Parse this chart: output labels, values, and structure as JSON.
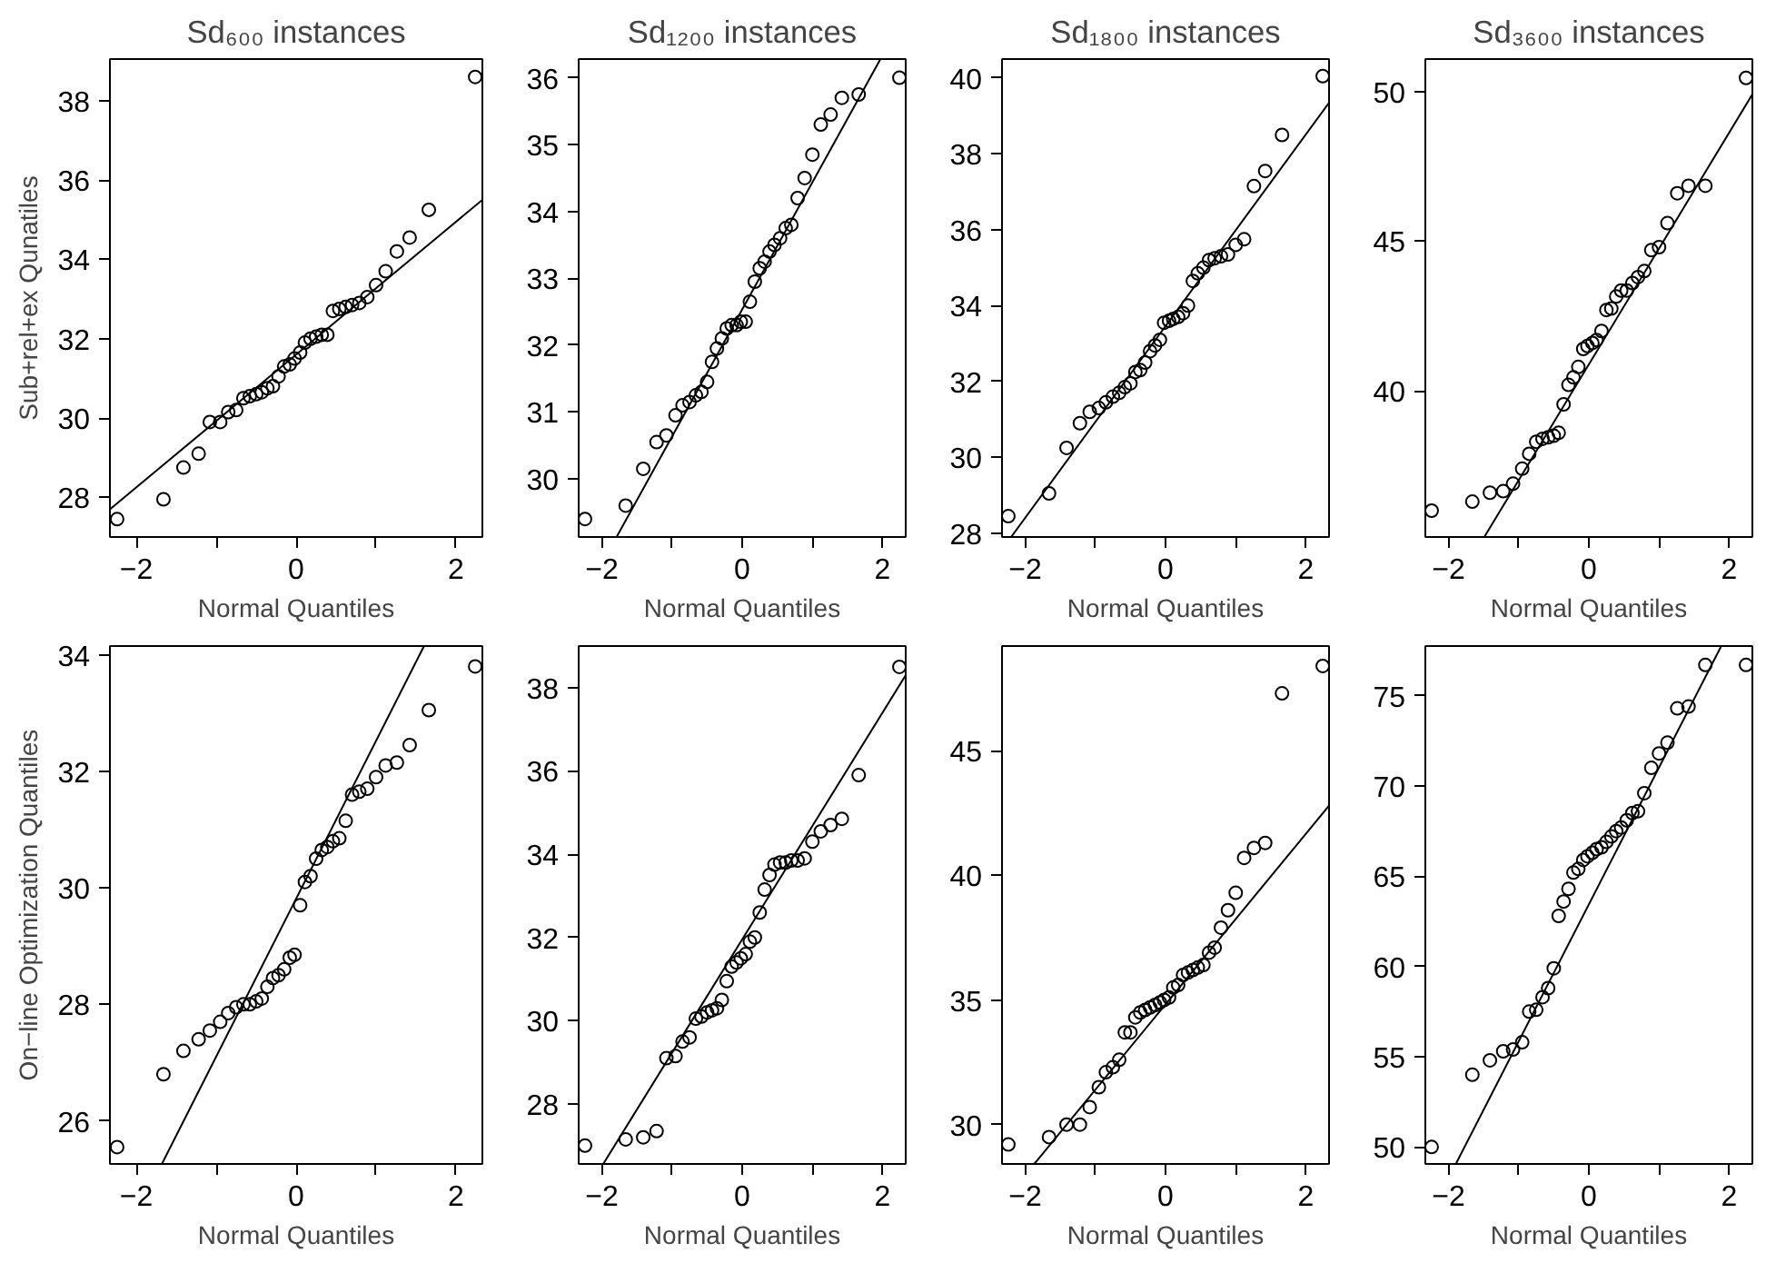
{
  "chart_data": [
    {
      "type": "scatter",
      "title": "Sd₆₀₀ instances",
      "xlabel": "Normal Quantiles",
      "ylabel": "Sub+rel+ex Qunatiles",
      "marker": "circle",
      "xlim": [
        -2.33,
        2.33
      ],
      "ylim": [
        27.0,
        39.05
      ],
      "xticks": [
        {
          "value": -2,
          "label": "−2"
        },
        {
          "value": -1,
          "label": null
        },
        {
          "value": 0,
          "label": "0"
        },
        {
          "value": 1,
          "label": null
        },
        {
          "value": 2,
          "label": "2"
        }
      ],
      "yticks": [
        28,
        30,
        32,
        34,
        36,
        38
      ],
      "series": [
        {
          "color": "#000000",
          "x": [
            -2.24,
            -1.66,
            -1.41,
            -1.22,
            -1.08,
            -0.95,
            -0.85,
            -0.75,
            -0.66,
            -0.58,
            -0.5,
            -0.43,
            -0.36,
            -0.29,
            -0.22,
            -0.15,
            -0.08,
            -0.02,
            0.05,
            0.11,
            0.18,
            0.25,
            0.32,
            0.39,
            0.46,
            0.54,
            0.62,
            0.7,
            0.79,
            0.89,
            1.0,
            1.12,
            1.26,
            1.42,
            1.66,
            2.24
          ],
          "values": [
            27.45,
            27.95,
            28.75,
            29.1,
            29.9,
            29.9,
            30.15,
            30.2,
            30.5,
            30.55,
            30.6,
            30.65,
            30.75,
            30.8,
            31.05,
            31.3,
            31.35,
            31.5,
            31.65,
            31.9,
            32.0,
            32.05,
            32.1,
            32.1,
            32.7,
            32.75,
            32.8,
            32.85,
            32.9,
            33.05,
            33.35,
            33.7,
            34.2,
            34.55,
            35.25,
            38.6
          ]
        },
        {
          "type": "line",
          "marker": "none",
          "color": "#000000",
          "x": [
            -2.33,
            2.33
          ],
          "values": [
            27.7,
            35.5
          ]
        }
      ]
    },
    {
      "type": "scatter",
      "title": "Sd₁₂₀₀ instances",
      "xlabel": "Normal Quantiles",
      "marker": "circle",
      "xlim": [
        -2.33,
        2.33
      ],
      "ylim": [
        29.13,
        36.28
      ],
      "xticks": [
        {
          "value": -2,
          "label": "−2"
        },
        {
          "value": -1,
          "label": null
        },
        {
          "value": 0,
          "label": "0"
        },
        {
          "value": 1,
          "label": null
        },
        {
          "value": 2,
          "label": "2"
        }
      ],
      "yticks": [
        30,
        31,
        32,
        33,
        34,
        35,
        36
      ],
      "series": [
        {
          "color": "#000000",
          "x": [
            -2.24,
            -1.66,
            -1.41,
            -1.22,
            -1.08,
            -0.95,
            -0.85,
            -0.75,
            -0.66,
            -0.58,
            -0.5,
            -0.43,
            -0.36,
            -0.29,
            -0.22,
            -0.15,
            -0.08,
            -0.02,
            0.05,
            0.11,
            0.18,
            0.25,
            0.32,
            0.39,
            0.46,
            0.54,
            0.62,
            0.7,
            0.79,
            0.89,
            1.0,
            1.12,
            1.26,
            1.42,
            1.66,
            2.24
          ],
          "values": [
            29.4,
            29.6,
            30.15,
            30.55,
            30.65,
            30.95,
            31.1,
            31.15,
            31.25,
            31.3,
            31.45,
            31.75,
            31.95,
            32.1,
            32.25,
            32.3,
            32.3,
            32.35,
            32.35,
            32.65,
            32.95,
            33.15,
            33.25,
            33.4,
            33.5,
            33.6,
            33.75,
            33.8,
            34.2,
            34.5,
            34.85,
            35.3,
            35.45,
            35.7,
            35.75,
            36.0
          ]
        },
        {
          "type": "line",
          "marker": "none",
          "color": "#000000",
          "x": [
            -1.79,
            1.97
          ],
          "values": [
            29.13,
            36.28
          ]
        }
      ]
    },
    {
      "type": "scatter",
      "title": "Sd₁₈₀₀ instances",
      "xlabel": "Normal Quantiles",
      "marker": "circle",
      "xlim": [
        -2.33,
        2.33
      ],
      "ylim": [
        27.9,
        40.5
      ],
      "xticks": [
        {
          "value": -2,
          "label": "−2"
        },
        {
          "value": -1,
          "label": null
        },
        {
          "value": 0,
          "label": "0"
        },
        {
          "value": 1,
          "label": null
        },
        {
          "value": 2,
          "label": "2"
        }
      ],
      "yticks": [
        28,
        30,
        32,
        34,
        36,
        38,
        40
      ],
      "series": [
        {
          "color": "#000000",
          "x": [
            -2.24,
            -1.66,
            -1.41,
            -1.22,
            -1.08,
            -0.95,
            -0.85,
            -0.75,
            -0.66,
            -0.58,
            -0.5,
            -0.43,
            -0.36,
            -0.29,
            -0.22,
            -0.15,
            -0.08,
            -0.02,
            0.05,
            0.11,
            0.18,
            0.25,
            0.32,
            0.39,
            0.46,
            0.54,
            0.62,
            0.7,
            0.79,
            0.89,
            1.0,
            1.12,
            1.26,
            1.42,
            1.66,
            2.24
          ],
          "values": [
            28.45,
            29.05,
            30.25,
            30.9,
            31.2,
            31.3,
            31.45,
            31.6,
            31.7,
            31.85,
            31.95,
            32.25,
            32.3,
            32.5,
            32.8,
            32.95,
            33.1,
            33.55,
            33.6,
            33.65,
            33.7,
            33.8,
            34.0,
            34.65,
            34.85,
            35.0,
            35.2,
            35.25,
            35.3,
            35.35,
            35.6,
            35.75,
            37.15,
            37.55,
            38.5,
            40.05
          ]
        },
        {
          "type": "line",
          "marker": "none",
          "color": "#000000",
          "x": [
            -2.2,
            2.33
          ],
          "values": [
            27.9,
            39.35
          ]
        }
      ]
    },
    {
      "type": "scatter",
      "title": "Sd₃₆₀₀ instances",
      "xlabel": "Normal Quantiles",
      "marker": "circle",
      "xlim": [
        -2.33,
        2.33
      ],
      "ylim": [
        35.12,
        51.08
      ],
      "xticks": [
        {
          "value": -2,
          "label": "−2"
        },
        {
          "value": -1,
          "label": null
        },
        {
          "value": 0,
          "label": "0"
        },
        {
          "value": 1,
          "label": null
        },
        {
          "value": 2,
          "label": "2"
        }
      ],
      "yticks": [
        40,
        45,
        50
      ],
      "series": [
        {
          "color": "#000000",
          "x": [
            -2.24,
            -1.66,
            -1.41,
            -1.22,
            -1.08,
            -0.95,
            -0.85,
            -0.75,
            -0.66,
            -0.58,
            -0.5,
            -0.43,
            -0.36,
            -0.29,
            -0.22,
            -0.15,
            -0.08,
            -0.02,
            0.05,
            0.11,
            0.18,
            0.25,
            0.32,
            0.39,
            0.46,
            0.54,
            0.62,
            0.7,
            0.79,
            0.89,
            1.0,
            1.12,
            1.26,
            1.42,
            1.66,
            2.24
          ],
          "values": [
            36.0,
            36.3,
            36.6,
            36.65,
            36.9,
            37.4,
            37.9,
            38.3,
            38.4,
            38.45,
            38.5,
            38.6,
            39.55,
            40.2,
            40.45,
            40.8,
            41.4,
            41.5,
            41.6,
            41.7,
            42.0,
            42.7,
            42.75,
            43.15,
            43.35,
            43.35,
            43.6,
            43.8,
            44.0,
            44.7,
            44.8,
            45.6,
            46.6,
            46.85,
            46.85,
            50.45
          ]
        },
        {
          "type": "line",
          "marker": "none",
          "color": "#000000",
          "x": [
            -1.49,
            2.33
          ],
          "values": [
            35.12,
            49.9
          ]
        }
      ]
    },
    {
      "type": "scatter",
      "xlabel": "Normal Quantiles",
      "ylabel": "On−line Optimization Quantiles",
      "marker": "circle",
      "xlim": [
        -2.33,
        2.33
      ],
      "ylim": [
        25.26,
        34.15
      ],
      "xticks": [
        {
          "value": -2,
          "label": "−2"
        },
        {
          "value": -1,
          "label": null
        },
        {
          "value": 0,
          "label": "0"
        },
        {
          "value": 1,
          "label": null
        },
        {
          "value": 2,
          "label": "2"
        }
      ],
      "yticks": [
        26,
        28,
        30,
        32,
        34
      ],
      "series": [
        {
          "color": "#000000",
          "x": [
            -2.24,
            -1.66,
            -1.41,
            -1.22,
            -1.08,
            -0.95,
            -0.85,
            -0.75,
            -0.66,
            -0.58,
            -0.5,
            -0.43,
            -0.36,
            -0.29,
            -0.22,
            -0.15,
            -0.08,
            -0.02,
            0.05,
            0.11,
            0.18,
            0.25,
            0.32,
            0.39,
            0.46,
            0.54,
            0.62,
            0.7,
            0.79,
            0.89,
            1.0,
            1.12,
            1.26,
            1.42,
            1.66,
            2.24
          ],
          "values": [
            25.55,
            26.8,
            27.2,
            27.4,
            27.55,
            27.7,
            27.85,
            27.95,
            28.0,
            28.0,
            28.05,
            28.1,
            28.3,
            28.45,
            28.5,
            28.6,
            28.8,
            28.85,
            29.7,
            30.1,
            30.2,
            30.5,
            30.65,
            30.7,
            30.8,
            30.85,
            31.15,
            31.6,
            31.65,
            31.7,
            31.9,
            32.1,
            32.15,
            32.45,
            33.05,
            33.8
          ]
        },
        {
          "type": "line",
          "marker": "none",
          "color": "#000000",
          "x": [
            -1.68,
            1.6
          ],
          "values": [
            25.26,
            34.15
          ]
        }
      ]
    },
    {
      "type": "scatter",
      "xlabel": "Normal Quantiles",
      "marker": "circle",
      "xlim": [
        -2.33,
        2.33
      ],
      "ylim": [
        26.56,
        39.0
      ],
      "xticks": [
        {
          "value": -2,
          "label": "−2"
        },
        {
          "value": -1,
          "label": null
        },
        {
          "value": 0,
          "label": "0"
        },
        {
          "value": 1,
          "label": null
        },
        {
          "value": 2,
          "label": "2"
        }
      ],
      "yticks": [
        28,
        30,
        32,
        34,
        36,
        38
      ],
      "series": [
        {
          "color": "#000000",
          "x": [
            -2.24,
            -1.66,
            -1.41,
            -1.22,
            -1.08,
            -0.95,
            -0.85,
            -0.75,
            -0.66,
            -0.58,
            -0.5,
            -0.43,
            -0.36,
            -0.29,
            -0.22,
            -0.15,
            -0.08,
            -0.02,
            0.05,
            0.11,
            0.18,
            0.25,
            0.32,
            0.39,
            0.46,
            0.54,
            0.62,
            0.7,
            0.79,
            0.89,
            1.0,
            1.12,
            1.26,
            1.42,
            1.66,
            2.24
          ],
          "values": [
            27.0,
            27.15,
            27.2,
            27.35,
            29.1,
            29.15,
            29.5,
            29.6,
            30.05,
            30.1,
            30.2,
            30.25,
            30.3,
            30.5,
            30.95,
            31.3,
            31.4,
            31.5,
            31.6,
            31.9,
            32.0,
            32.6,
            33.15,
            33.5,
            33.75,
            33.8,
            33.8,
            33.85,
            33.85,
            33.9,
            34.3,
            34.55,
            34.7,
            34.85,
            35.9,
            38.5
          ]
        },
        {
          "type": "line",
          "marker": "none",
          "color": "#000000",
          "x": [
            -1.98,
            2.33
          ],
          "values": [
            26.56,
            38.3
          ]
        }
      ]
    },
    {
      "type": "scatter",
      "xlabel": "Normal Quantiles",
      "marker": "circle",
      "xlim": [
        -2.33,
        2.33
      ],
      "ylim": [
        28.42,
        49.2
      ],
      "xticks": [
        {
          "value": -2,
          "label": "−2"
        },
        {
          "value": -1,
          "label": null
        },
        {
          "value": 0,
          "label": "0"
        },
        {
          "value": 1,
          "label": null
        },
        {
          "value": 2,
          "label": "2"
        }
      ],
      "yticks": [
        30,
        35,
        40,
        45
      ],
      "series": [
        {
          "color": "#000000",
          "x": [
            -2.24,
            -1.66,
            -1.41,
            -1.22,
            -1.08,
            -0.95,
            -0.85,
            -0.75,
            -0.66,
            -0.58,
            -0.5,
            -0.43,
            -0.36,
            -0.29,
            -0.22,
            -0.15,
            -0.08,
            -0.02,
            0.05,
            0.11,
            0.18,
            0.25,
            0.32,
            0.39,
            0.46,
            0.54,
            0.62,
            0.7,
            0.79,
            0.89,
            1.0,
            1.12,
            1.26,
            1.42,
            1.66,
            2.24
          ],
          "values": [
            29.2,
            29.5,
            30.0,
            30.0,
            30.7,
            31.5,
            32.1,
            32.3,
            32.6,
            33.7,
            33.7,
            34.3,
            34.5,
            34.6,
            34.7,
            34.8,
            34.9,
            35.0,
            35.1,
            35.5,
            35.6,
            36.0,
            36.1,
            36.2,
            36.3,
            36.4,
            36.9,
            37.1,
            37.9,
            38.6,
            39.3,
            40.7,
            41.1,
            41.3,
            47.3,
            48.4
          ]
        },
        {
          "type": "line",
          "marker": "none",
          "color": "#000000",
          "x": [
            -1.87,
            2.33
          ],
          "values": [
            28.42,
            42.8
          ]
        }
      ]
    },
    {
      "type": "scatter",
      "xlabel": "Normal Quantiles",
      "marker": "circle",
      "xlim": [
        -2.33,
        2.33
      ],
      "ylim": [
        49.06,
        77.75
      ],
      "xticks": [
        {
          "value": -2,
          "label": "−2"
        },
        {
          "value": -1,
          "label": null
        },
        {
          "value": 0,
          "label": "0"
        },
        {
          "value": 1,
          "label": null
        },
        {
          "value": 2,
          "label": "2"
        }
      ],
      "yticks": [
        50,
        55,
        60,
        65,
        70,
        75
      ],
      "series": [
        {
          "color": "#000000",
          "x": [
            -2.24,
            -1.66,
            -1.41,
            -1.22,
            -1.08,
            -0.95,
            -0.85,
            -0.75,
            -0.66,
            -0.58,
            -0.5,
            -0.43,
            -0.36,
            -0.29,
            -0.22,
            -0.15,
            -0.08,
            -0.02,
            0.05,
            0.11,
            0.18,
            0.25,
            0.32,
            0.39,
            0.46,
            0.54,
            0.62,
            0.7,
            0.79,
            0.89,
            1.0,
            1.12,
            1.26,
            1.42,
            1.66,
            2.24
          ],
          "values": [
            50.0,
            54.0,
            54.8,
            55.3,
            55.4,
            55.8,
            57.5,
            57.6,
            58.3,
            58.8,
            59.9,
            62.8,
            63.6,
            64.3,
            65.2,
            65.4,
            65.9,
            66.1,
            66.3,
            66.5,
            66.6,
            66.9,
            67.2,
            67.5,
            67.7,
            68.1,
            68.5,
            68.6,
            69.6,
            71.0,
            71.8,
            72.4,
            74.3,
            74.4,
            76.7,
            76.7
          ]
        },
        {
          "type": "line",
          "marker": "none",
          "color": "#000000",
          "x": [
            -1.89,
            1.88
          ],
          "values": [
            49.1,
            77.7
          ]
        }
      ]
    }
  ]
}
